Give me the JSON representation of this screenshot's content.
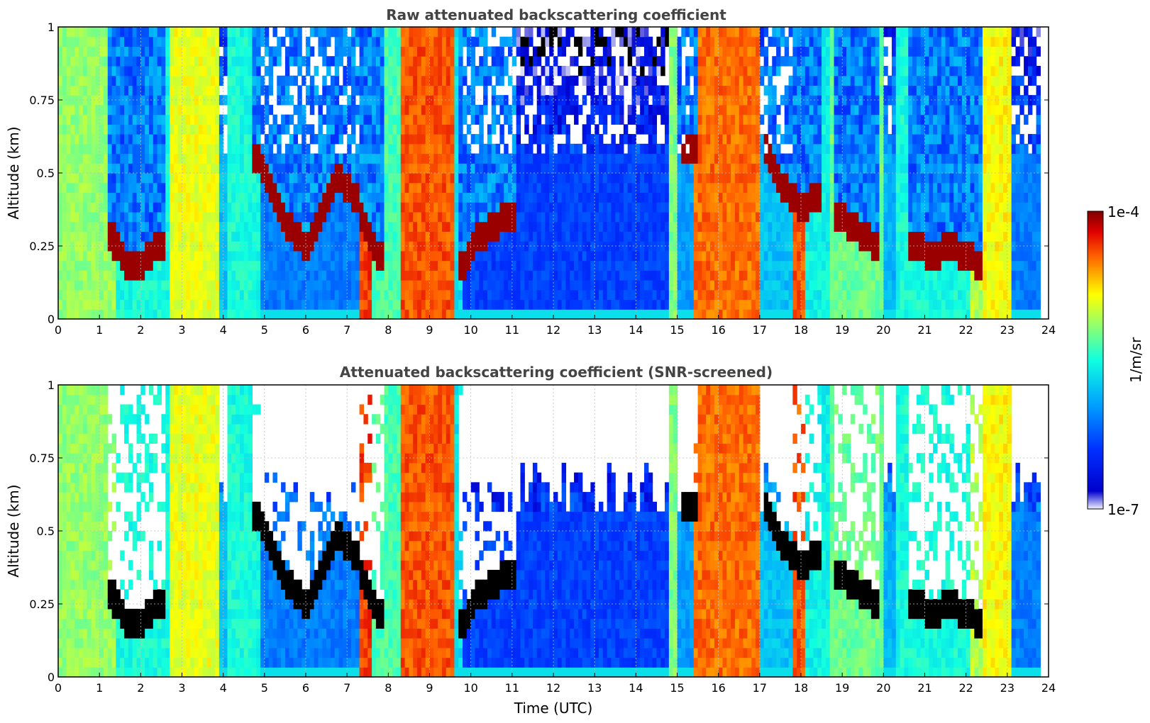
{
  "chart_data": [
    {
      "type": "heatmap",
      "title": "Raw attenuated backscattering coefficient",
      "xlabel": "",
      "ylabel": "Altitude (km)",
      "xlim": [
        0,
        24
      ],
      "ylim": [
        0,
        1
      ],
      "xticks": [
        "0",
        "1",
        "2",
        "3",
        "4",
        "5",
        "6",
        "7",
        "8",
        "9",
        "10",
        "11",
        "12",
        "13",
        "14",
        "15",
        "16",
        "17",
        "18",
        "19",
        "20",
        "21",
        "22",
        "23",
        "24"
      ],
      "yticks": [
        "0",
        "0.25",
        "0.5",
        "0.75",
        "1"
      ],
      "data_extent_hours": [
        0,
        23.8
      ],
      "grid": true,
      "screened": false
    },
    {
      "type": "heatmap",
      "title": "Attenuated backscattering coefficient (SNR-screened)",
      "xlabel": "Time (UTC)",
      "ylabel": "Altitude (km)",
      "xlim": [
        0,
        24
      ],
      "ylim": [
        0,
        1
      ],
      "xticks": [
        "0",
        "1",
        "2",
        "3",
        "4",
        "5",
        "6",
        "7",
        "8",
        "9",
        "10",
        "11",
        "12",
        "13",
        "14",
        "15",
        "16",
        "17",
        "18",
        "19",
        "20",
        "21",
        "22",
        "23",
        "24"
      ],
      "yticks": [
        "0",
        "0.25",
        "0.5",
        "0.75",
        "1"
      ],
      "data_extent_hours": [
        0,
        23.8
      ],
      "grid": true,
      "screened": true
    }
  ],
  "colorbar": {
    "label": "1/m/sr",
    "max_label": "1e-4",
    "min_label": "1e-7",
    "scale": "log",
    "range": [
      1e-07,
      0.0001
    ]
  },
  "profile": {
    "time_hours": [
      0,
      0.5,
      1,
      1.3,
      1.6,
      1.9,
      2.2,
      2.5,
      2.8,
      3.3,
      3.8,
      4.05,
      4.5,
      4.9,
      5.2,
      5.6,
      6.0,
      6.4,
      6.8,
      7.2,
      7.5,
      7.8,
      8.1,
      8.4,
      8.8,
      9.2,
      9.6,
      9.8,
      10.2,
      10.8,
      11.5,
      12.5,
      13.5,
      14.5,
      14.9,
      15.3,
      15.6,
      16.0,
      16.5,
      17.0,
      17.2,
      17.6,
      18.0,
      18.4,
      18.7,
      19.0,
      19.4,
      19.8,
      20.1,
      20.4,
      20.8,
      21.2,
      21.6,
      22.0,
      22.3,
      22.6,
      23.0,
      23.4,
      23.8
    ],
    "cloud_base_km": [
      null,
      null,
      null,
      0.28,
      0.2,
      0.17,
      0.22,
      0.26,
      null,
      null,
      null,
      null,
      null,
      0.55,
      0.42,
      0.32,
      0.25,
      0.38,
      0.48,
      0.42,
      0.3,
      0.2,
      null,
      null,
      null,
      null,
      null,
      0.18,
      0.28,
      0.35,
      null,
      null,
      null,
      null,
      null,
      0.6,
      null,
      null,
      null,
      null,
      0.58,
      0.45,
      0.38,
      0.42,
      null,
      0.35,
      0.3,
      0.25,
      null,
      null,
      0.25,
      0.22,
      0.25,
      0.22,
      0.18,
      null,
      null,
      null,
      null
    ]
  }
}
